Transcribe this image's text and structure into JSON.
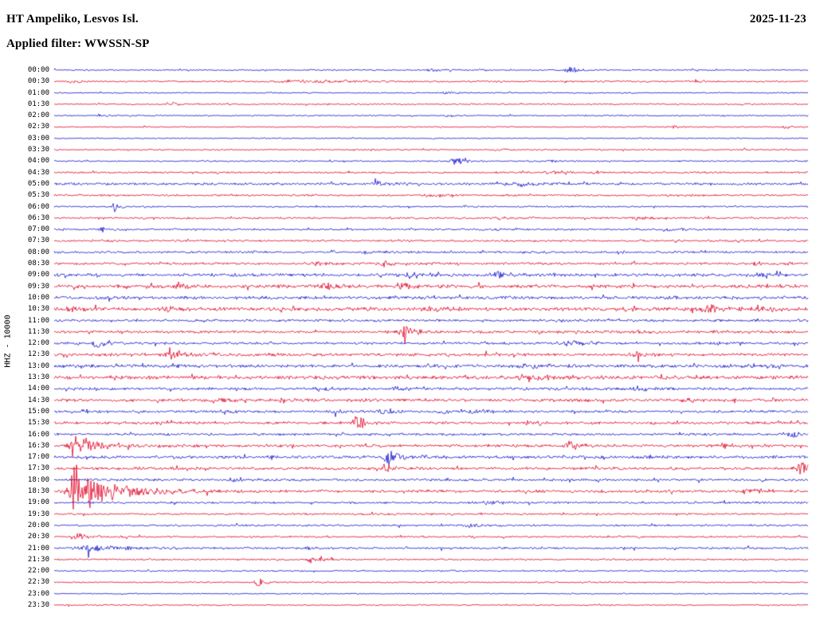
{
  "chart_data": {
    "type": "seismogram",
    "title": "HT Ampeliko, Lesvos Isl.",
    "date": "2025-11-23",
    "filter": "Applied filter: WWSSN-SP",
    "ylabel": "HHZ - 10000",
    "minutes_per_row": 30,
    "legend_position": "none",
    "grid": false,
    "trace_colors": {
      "blue": "#1212cd",
      "red": "#e00024"
    },
    "rows": [
      {
        "time": "00:00",
        "color": "blue",
        "noise": 1.0,
        "events": [
          {
            "x": 0.684,
            "amp": 5,
            "w": 6,
            "d": 14
          },
          {
            "x": 0.5,
            "amp": 1.5,
            "w": 8
          }
        ]
      },
      {
        "time": "00:30",
        "color": "red",
        "noise": 1.2,
        "events": [
          {
            "x": 0.022,
            "amp": 2.5,
            "w": 3
          },
          {
            "x": 0.34,
            "amp": 1.8,
            "w": 40,
            "d": 60
          },
          {
            "x": 0.85,
            "amp": 1.8,
            "w": 5
          }
        ]
      },
      {
        "time": "01:00",
        "color": "blue",
        "noise": 0.9,
        "events": [
          {
            "x": 0.52,
            "amp": 1.5,
            "w": 5
          }
        ]
      },
      {
        "time": "01:30",
        "color": "red",
        "noise": 1.1,
        "events": [
          {
            "x": 0.155,
            "amp": 3,
            "w": 4
          }
        ]
      },
      {
        "time": "02:00",
        "color": "blue",
        "noise": 1.0,
        "events": [
          {
            "x": 0.06,
            "amp": 2.2,
            "w": 3
          },
          {
            "x": 0.52,
            "amp": 1.5,
            "w": 4
          }
        ]
      },
      {
        "time": "02:30",
        "color": "red",
        "noise": 0.9,
        "events": [
          {
            "x": 0.82,
            "amp": 1.5,
            "w": 5
          },
          {
            "x": 0.97,
            "amp": 1.8,
            "w": 4
          }
        ]
      },
      {
        "time": "03:00",
        "color": "blue",
        "noise": 0.8,
        "events": []
      },
      {
        "time": "03:30",
        "color": "red",
        "noise": 1.0,
        "events": [
          {
            "x": 0.405,
            "amp": 2,
            "w": 6
          },
          {
            "x": 0.59,
            "amp": 2,
            "w": 6
          }
        ]
      },
      {
        "time": "04:00",
        "color": "blue",
        "noise": 1.1,
        "events": [
          {
            "x": 0.532,
            "amp": 5,
            "w": 5,
            "d": 12
          },
          {
            "x": 0.66,
            "amp": 2,
            "w": 4
          }
        ]
      },
      {
        "time": "04:30",
        "color": "red",
        "noise": 1.3,
        "events": [
          {
            "x": 0.655,
            "amp": 3,
            "w": 5
          },
          {
            "x": 0.715,
            "amp": 2.5,
            "w": 5
          }
        ]
      },
      {
        "time": "05:00",
        "color": "blue",
        "noise": 1.8,
        "events": [
          {
            "x": 0.43,
            "amp": 2.5,
            "w": 8
          },
          {
            "x": 0.62,
            "amp": 3,
            "w": 10,
            "d": 20
          }
        ]
      },
      {
        "time": "05:30",
        "color": "red",
        "noise": 1.5,
        "events": [
          {
            "x": 0.5,
            "amp": 2.5,
            "w": 8
          }
        ]
      },
      {
        "time": "06:00",
        "color": "blue",
        "noise": 1.2,
        "events": [
          {
            "x": 0.08,
            "amp": 5,
            "w": 3,
            "d": 8
          }
        ]
      },
      {
        "time": "06:30",
        "color": "red",
        "noise": 1.4,
        "events": [
          {
            "x": 0.59,
            "amp": 2.5,
            "w": 6
          },
          {
            "x": 0.77,
            "amp": 2.5,
            "w": 6
          }
        ]
      },
      {
        "time": "07:00",
        "color": "blue",
        "noise": 1.3,
        "events": [
          {
            "x": 0.065,
            "amp": 3,
            "w": 4
          },
          {
            "x": 0.59,
            "amp": 2.5,
            "w": 6
          },
          {
            "x": 0.815,
            "amp": 4,
            "w": 8,
            "d": 14
          }
        ]
      },
      {
        "time": "07:30",
        "color": "red",
        "noise": 1.5,
        "events": [
          {
            "x": 0.055,
            "amp": 2.5,
            "w": 5
          }
        ]
      },
      {
        "time": "08:00",
        "color": "blue",
        "noise": 1.6,
        "events": [
          {
            "x": 0.42,
            "amp": 2,
            "w": 10
          }
        ]
      },
      {
        "time": "08:30",
        "color": "red",
        "noise": 1.8,
        "events": [
          {
            "x": 0.35,
            "amp": 2.5,
            "w": 6
          },
          {
            "x": 0.44,
            "amp": 4.5,
            "w": 7,
            "d": 14
          },
          {
            "x": 0.93,
            "amp": 2.5,
            "w": 5
          }
        ]
      },
      {
        "time": "09:00",
        "color": "blue",
        "noise": 2.2,
        "events": [
          {
            "x": 0.455,
            "amp": 2.5,
            "w": 8
          },
          {
            "x": 0.585,
            "amp": 3,
            "w": 8
          },
          {
            "x": 0.93,
            "amp": 2.5,
            "w": 8
          }
        ]
      },
      {
        "time": "09:30",
        "color": "red",
        "noise": 2.4,
        "events": [
          {
            "x": 0.165,
            "amp": 6,
            "w": 4,
            "d": 10
          },
          {
            "x": 0.36,
            "amp": 3.5,
            "w": 8
          },
          {
            "x": 0.46,
            "amp": 3.5,
            "w": 6
          }
        ]
      },
      {
        "time": "10:00",
        "color": "blue",
        "noise": 2.2,
        "events": []
      },
      {
        "time": "10:30",
        "color": "red",
        "noise": 2.6,
        "events": [
          {
            "x": 0.02,
            "amp": 2.5,
            "w": 6
          },
          {
            "x": 0.15,
            "amp": 2.5,
            "w": 8
          },
          {
            "x": 0.5,
            "amp": 2.5,
            "w": 10
          },
          {
            "x": 0.875,
            "amp": 4.5,
            "w": 14,
            "d": 20
          },
          {
            "x": 0.935,
            "amp": 3.5,
            "w": 6
          }
        ]
      },
      {
        "time": "11:00",
        "color": "blue",
        "noise": 1.8,
        "events": []
      },
      {
        "time": "11:30",
        "color": "red",
        "noise": 2.0,
        "events": [
          {
            "x": 0.465,
            "amp": 7,
            "w": 6,
            "d": 16
          },
          {
            "x": 0.775,
            "amp": 2.5,
            "w": 6
          }
        ]
      },
      {
        "time": "12:00",
        "color": "blue",
        "noise": 1.8,
        "events": [
          {
            "x": 0.056,
            "amp": 7,
            "w": 4,
            "d": 10
          },
          {
            "x": 0.685,
            "amp": 3.5,
            "w": 12,
            "d": 22
          }
        ]
      },
      {
        "time": "12:30",
        "color": "red",
        "noise": 2.2,
        "events": [
          {
            "x": 0.155,
            "amp": 9,
            "w": 5,
            "d": 12
          },
          {
            "x": 0.775,
            "amp": 2.5,
            "w": 8
          }
        ]
      },
      {
        "time": "13:00",
        "color": "blue",
        "noise": 2.4,
        "events": [
          {
            "x": 0.625,
            "amp": 2.5,
            "w": 8
          }
        ]
      },
      {
        "time": "13:30",
        "color": "red",
        "noise": 2.6,
        "events": [
          {
            "x": 0.63,
            "amp": 4.5,
            "w": 14,
            "d": 24
          }
        ]
      },
      {
        "time": "14:00",
        "color": "blue",
        "noise": 2.0,
        "events": [
          {
            "x": 0.35,
            "amp": 2.5,
            "w": 5
          },
          {
            "x": 0.455,
            "amp": 2.5,
            "w": 6
          },
          {
            "x": 0.775,
            "amp": 3,
            "w": 6
          }
        ]
      },
      {
        "time": "14:30",
        "color": "red",
        "noise": 2.2,
        "events": [
          {
            "x": 0.215,
            "amp": 3,
            "w": 6
          },
          {
            "x": 0.3,
            "amp": 2.5,
            "w": 5
          },
          {
            "x": 0.835,
            "amp": 2.5,
            "w": 6
          }
        ]
      },
      {
        "time": "15:00",
        "color": "blue",
        "noise": 1.8,
        "events": [
          {
            "x": 0.04,
            "amp": 2.5,
            "w": 4
          },
          {
            "x": 0.225,
            "amp": 3,
            "w": 5
          },
          {
            "x": 0.37,
            "amp": 2.5,
            "w": 5
          },
          {
            "x": 0.435,
            "amp": 3,
            "w": 5
          },
          {
            "x": 0.515,
            "amp": 3,
            "w": 5
          },
          {
            "x": 0.555,
            "amp": 3.5,
            "w": 6
          }
        ]
      },
      {
        "time": "15:30",
        "color": "red",
        "noise": 2.0,
        "events": [
          {
            "x": 0.4,
            "amp": 13,
            "w": 3,
            "d": 8
          },
          {
            "x": 0.63,
            "amp": 2.5,
            "w": 5
          }
        ]
      },
      {
        "time": "16:00",
        "color": "blue",
        "noise": 1.8,
        "events": [
          {
            "x": 0.972,
            "amp": 5.5,
            "w": 5,
            "d": 10
          }
        ]
      },
      {
        "time": "16:30",
        "color": "red",
        "noise": 2.0,
        "events": [
          {
            "x": 0.025,
            "amp": 16,
            "w": 5,
            "d": 28
          },
          {
            "x": 0.685,
            "amp": 5.5,
            "w": 7,
            "d": 12
          },
          {
            "x": 0.89,
            "amp": 2.5,
            "w": 6
          }
        ]
      },
      {
        "time": "17:00",
        "color": "blue",
        "noise": 2.2,
        "events": [
          {
            "x": 0.445,
            "amp": 10,
            "w": 6,
            "d": 18
          }
        ]
      },
      {
        "time": "17:30",
        "color": "red",
        "noise": 2.0,
        "events": [
          {
            "x": 0.44,
            "amp": 8,
            "w": 3,
            "d": 8
          },
          {
            "x": 0.99,
            "amp": 9,
            "w": 6,
            "d": 10
          }
        ]
      },
      {
        "time": "18:00",
        "color": "blue",
        "noise": 1.8,
        "events": [
          {
            "x": 0.24,
            "amp": 2.5,
            "w": 6
          }
        ]
      },
      {
        "time": "18:30",
        "color": "red",
        "noise": 2.0,
        "events": [
          {
            "x": 0.025,
            "amp": 38,
            "w": 5,
            "d": 45
          },
          {
            "x": 0.92,
            "amp": 4.5,
            "w": 8
          }
        ]
      },
      {
        "time": "19:00",
        "color": "blue",
        "noise": 1.6,
        "events": [
          {
            "x": 0.575,
            "amp": 3,
            "w": 8
          }
        ]
      },
      {
        "time": "19:30",
        "color": "red",
        "noise": 1.4,
        "events": []
      },
      {
        "time": "20:00",
        "color": "blue",
        "noise": 1.4,
        "events": [
          {
            "x": 0.55,
            "amp": 2.5,
            "w": 6
          }
        ]
      },
      {
        "time": "20:30",
        "color": "red",
        "noise": 1.3,
        "events": [
          {
            "x": 0.025,
            "amp": 6,
            "w": 2,
            "d": 16
          }
        ]
      },
      {
        "time": "21:00",
        "color": "blue",
        "noise": 1.5,
        "events": [
          {
            "x": 0.045,
            "amp": 4,
            "w": 15,
            "d": 45
          },
          {
            "x": 0.34,
            "amp": 2,
            "w": 5
          }
        ]
      },
      {
        "time": "21:30",
        "color": "red",
        "noise": 1.3,
        "events": [
          {
            "x": 0.34,
            "amp": 4,
            "w": 6,
            "d": 12
          }
        ]
      },
      {
        "time": "22:00",
        "color": "blue",
        "noise": 1.0,
        "events": [
          {
            "x": 0.52,
            "amp": 1.8,
            "w": 4
          }
        ]
      },
      {
        "time": "22:30",
        "color": "red",
        "noise": 1.1,
        "events": [
          {
            "x": 0.27,
            "amp": 5,
            "w": 4,
            "d": 10
          }
        ]
      },
      {
        "time": "23:00",
        "color": "blue",
        "noise": 0.8,
        "events": []
      },
      {
        "time": "23:30",
        "color": "red",
        "noise": 0.9,
        "events": []
      }
    ]
  }
}
